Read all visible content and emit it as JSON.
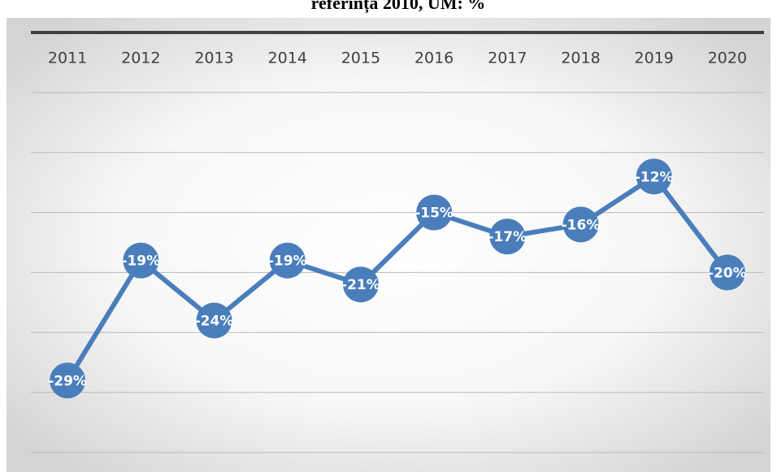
{
  "chart_data": {
    "type": "line",
    "title": "referința 2010, UM: %",
    "categories": [
      "2011",
      "2012",
      "2013",
      "2014",
      "2015",
      "2016",
      "2017",
      "2018",
      "2019",
      "2020"
    ],
    "series": [
      {
        "name": "",
        "color": "#4a7ebb",
        "values": [
          -29,
          -19,
          -24,
          -19,
          -21,
          -15,
          -17,
          -16,
          -12,
          -20
        ],
        "value_labels": [
          "-29%",
          "-19%",
          "-24%",
          "-19%",
          "-21%",
          "-15%",
          "-17%",
          "-16%",
          "-12%",
          "-20%"
        ]
      }
    ],
    "ylim": [
      -35,
      0
    ],
    "yticks": [
      -35,
      -30,
      -25,
      -20,
      -15,
      -10,
      -5,
      0
    ],
    "grid": true
  }
}
